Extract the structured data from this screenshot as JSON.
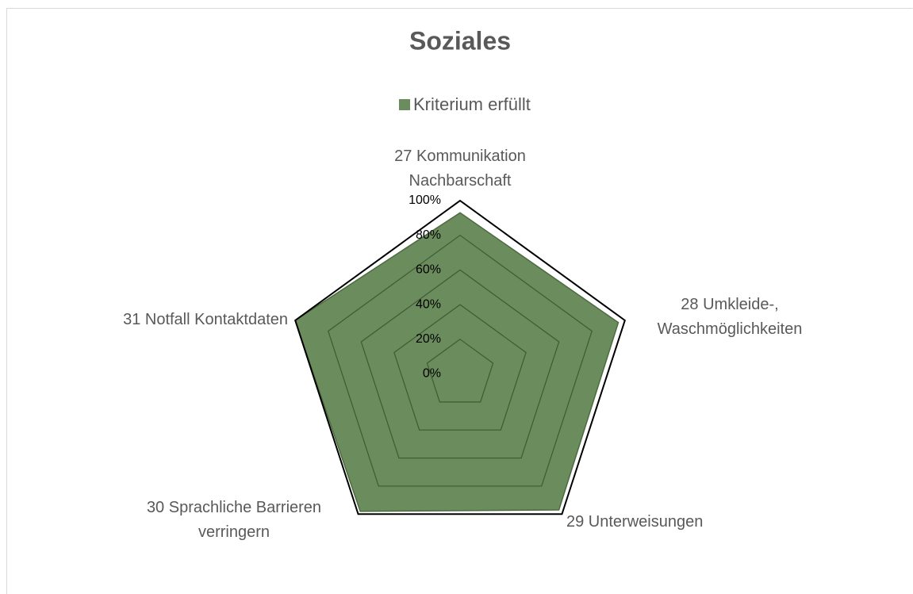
{
  "chart_data": {
    "type": "radar",
    "title": "Soziales",
    "categories": [
      "27 Kommunikation\nNachbarschaft",
      "28 Umkleide-,\nWaschmöglichkeiten",
      "29 Unterweisungen",
      "30 Sprachliche Barrieren\nverringern",
      "31 Notfall Kontaktdaten"
    ],
    "series": [
      {
        "name": "Kriterium erfüllt",
        "color": "#6b8c5c",
        "values": [
          93,
          96,
          97,
          98,
          100
        ]
      }
    ],
    "ylim": [
      0,
      100
    ],
    "yticks": [
      {
        "value": 0,
        "label": "0%"
      },
      {
        "value": 20,
        "label": "20%"
      },
      {
        "value": 40,
        "label": "40%"
      },
      {
        "value": 60,
        "label": "60%"
      },
      {
        "value": 80,
        "label": "80%"
      },
      {
        "value": 100,
        "label": "100%"
      }
    ],
    "grid": true,
    "legend": "top"
  }
}
